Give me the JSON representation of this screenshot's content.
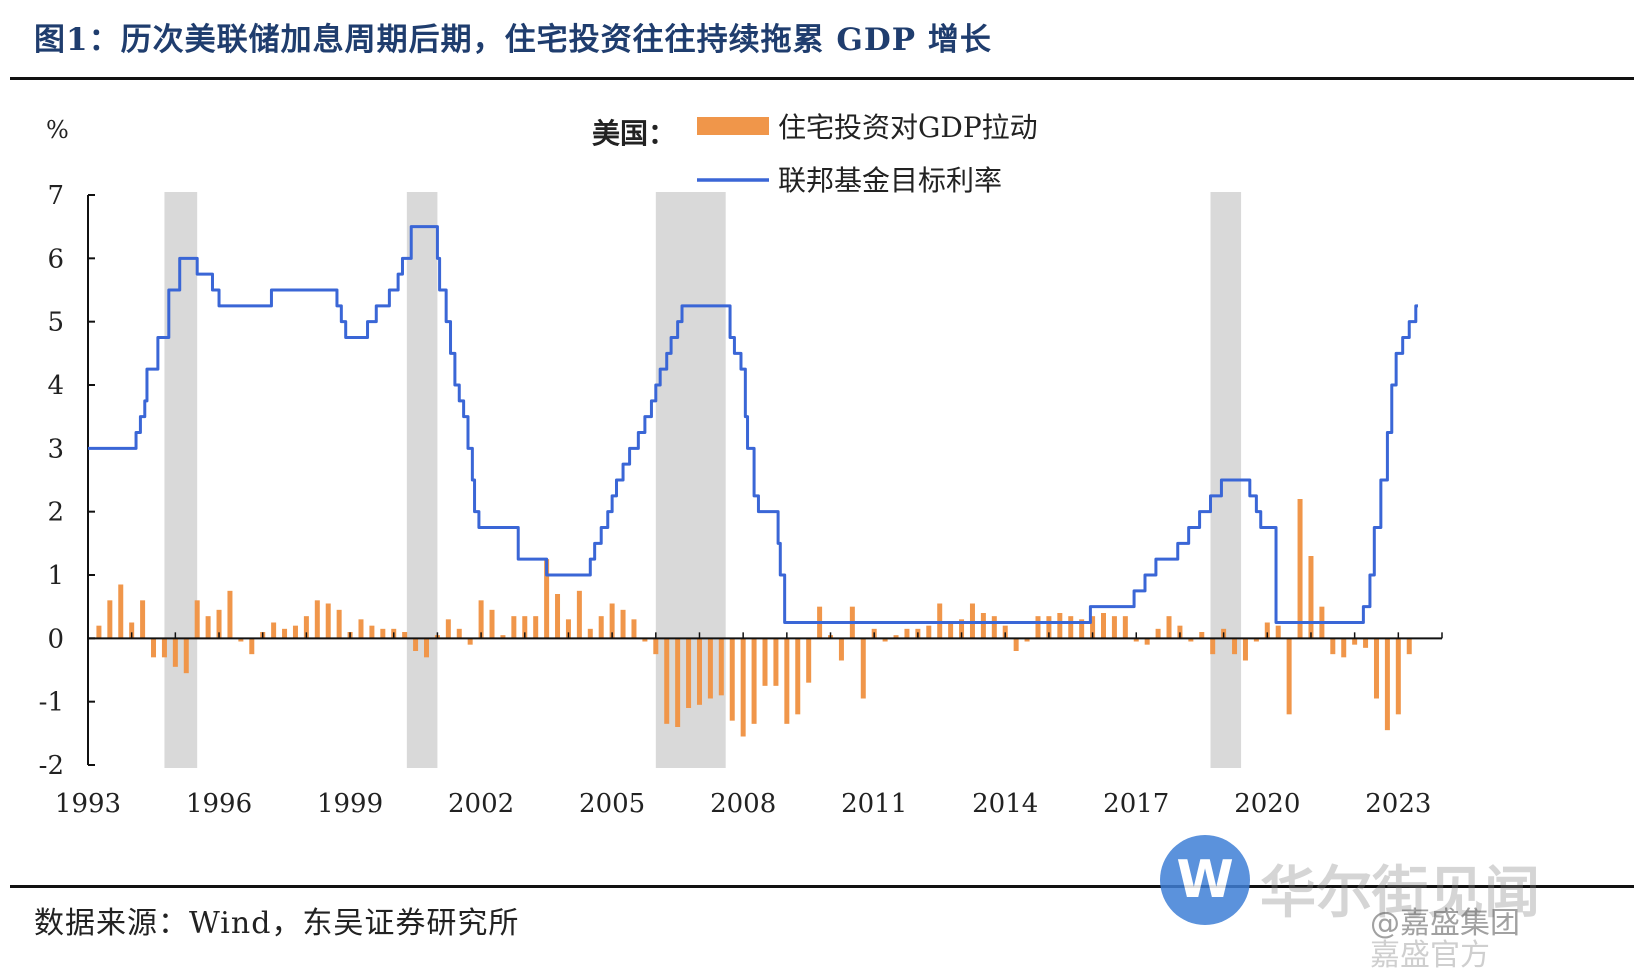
{
  "figure": {
    "title": "图1：历次美联储加息周期后期，住宅投资往往持续拖累 GDP 增长",
    "source": "数据来源：Wind，东吴证券研究所"
  },
  "watermark": {
    "logo_letter": "W",
    "brand": "华尔街见闻",
    "weibo_handle": "@嘉盛集团",
    "weibo_sub": "嘉盛官方"
  },
  "colors": {
    "bars": "#f0964a",
    "line": "#3a66d6",
    "shade": "#d9d9d9",
    "title": "#1f3d6e"
  },
  "chart_data": {
    "type": "bar+line",
    "ylabel": "%",
    "ylim": [
      -2,
      7
    ],
    "yticks": [
      "7",
      "6",
      "5",
      "4",
      "3",
      "2",
      "1",
      "0",
      "-1",
      "-2"
    ],
    "xlim": [
      1993.0,
      2024.0
    ],
    "xticks": [
      "1993",
      "1996",
      "1999",
      "2002",
      "2005",
      "2008",
      "2011",
      "2014",
      "2017",
      "2020",
      "2023"
    ],
    "legend_prefix": "美国：",
    "series": [
      {
        "name": "住宅投资对GDP拉动",
        "type": "bar",
        "points": [
          [
            1993.25,
            0.2
          ],
          [
            1993.5,
            0.6
          ],
          [
            1993.75,
            0.85
          ],
          [
            1994.0,
            0.25
          ],
          [
            1994.25,
            0.6
          ],
          [
            1994.5,
            -0.3
          ],
          [
            1994.75,
            -0.3
          ],
          [
            1995.0,
            -0.45
          ],
          [
            1995.25,
            -0.55
          ],
          [
            1995.5,
            0.6
          ],
          [
            1995.75,
            0.35
          ],
          [
            1996.0,
            0.45
          ],
          [
            1996.25,
            0.75
          ],
          [
            1996.5,
            -0.05
          ],
          [
            1996.75,
            -0.25
          ],
          [
            1997.0,
            0.1
          ],
          [
            1997.25,
            0.25
          ],
          [
            1997.5,
            0.15
          ],
          [
            1997.75,
            0.2
          ],
          [
            1998.0,
            0.35
          ],
          [
            1998.25,
            0.6
          ],
          [
            1998.5,
            0.55
          ],
          [
            1998.75,
            0.45
          ],
          [
            1999.0,
            0.1
          ],
          [
            1999.25,
            0.3
          ],
          [
            1999.5,
            0.2
          ],
          [
            1999.75,
            0.15
          ],
          [
            2000.0,
            0.15
          ],
          [
            2000.25,
            0.1
          ],
          [
            2000.5,
            -0.2
          ],
          [
            2000.75,
            -0.3
          ],
          [
            2001.0,
            0.05
          ],
          [
            2001.25,
            0.3
          ],
          [
            2001.5,
            0.15
          ],
          [
            2001.75,
            -0.1
          ],
          [
            2002.0,
            0.6
          ],
          [
            2002.25,
            0.45
          ],
          [
            2002.5,
            0.05
          ],
          [
            2002.75,
            0.35
          ],
          [
            2003.0,
            0.35
          ],
          [
            2003.25,
            0.35
          ],
          [
            2003.5,
            1.25
          ],
          [
            2003.75,
            0.7
          ],
          [
            2004.0,
            0.3
          ],
          [
            2004.25,
            0.75
          ],
          [
            2004.5,
            0.15
          ],
          [
            2004.75,
            0.35
          ],
          [
            2005.0,
            0.55
          ],
          [
            2005.25,
            0.45
          ],
          [
            2005.5,
            0.3
          ],
          [
            2005.75,
            -0.05
          ],
          [
            2006.0,
            -0.25
          ],
          [
            2006.25,
            -1.35
          ],
          [
            2006.5,
            -1.4
          ],
          [
            2006.75,
            -1.1
          ],
          [
            2007.0,
            -1.05
          ],
          [
            2007.25,
            -0.95
          ],
          [
            2007.5,
            -0.9
          ],
          [
            2007.75,
            -1.3
          ],
          [
            2008.0,
            -1.55
          ],
          [
            2008.25,
            -1.35
          ],
          [
            2008.5,
            -0.75
          ],
          [
            2008.75,
            -0.75
          ],
          [
            2009.0,
            -1.35
          ],
          [
            2009.25,
            -1.2
          ],
          [
            2009.5,
            -0.7
          ],
          [
            2009.75,
            0.5
          ],
          [
            2010.0,
            0.05
          ],
          [
            2010.25,
            -0.35
          ],
          [
            2010.5,
            0.5
          ],
          [
            2010.75,
            -0.95
          ],
          [
            2011.0,
            0.15
          ],
          [
            2011.25,
            -0.05
          ],
          [
            2011.5,
            0.05
          ],
          [
            2011.75,
            0.15
          ],
          [
            2012.0,
            0.15
          ],
          [
            2012.25,
            0.2
          ],
          [
            2012.5,
            0.55
          ],
          [
            2012.75,
            0.25
          ],
          [
            2013.0,
            0.3
          ],
          [
            2013.25,
            0.55
          ],
          [
            2013.5,
            0.4
          ],
          [
            2013.75,
            0.35
          ],
          [
            2014.0,
            0.2
          ],
          [
            2014.25,
            -0.2
          ],
          [
            2014.5,
            -0.05
          ],
          [
            2014.75,
            0.35
          ],
          [
            2015.0,
            0.35
          ],
          [
            2015.25,
            0.4
          ],
          [
            2015.5,
            0.35
          ],
          [
            2015.75,
            0.3
          ],
          [
            2016.0,
            0.35
          ],
          [
            2016.25,
            0.4
          ],
          [
            2016.5,
            0.35
          ],
          [
            2016.75,
            0.35
          ],
          [
            2017.0,
            -0.05
          ],
          [
            2017.25,
            -0.1
          ],
          [
            2017.5,
            0.15
          ],
          [
            2017.75,
            0.35
          ],
          [
            2018.0,
            0.2
          ],
          [
            2018.25,
            -0.05
          ],
          [
            2018.5,
            0.1
          ],
          [
            2018.75,
            -0.25
          ],
          [
            2019.0,
            0.15
          ],
          [
            2019.25,
            -0.25
          ],
          [
            2019.5,
            -0.35
          ],
          [
            2019.75,
            -0.05
          ],
          [
            2020.0,
            0.25
          ],
          [
            2020.25,
            0.2
          ],
          [
            2020.5,
            -1.2
          ],
          [
            2020.75,
            2.2
          ],
          [
            2021.0,
            1.3
          ],
          [
            2021.25,
            0.5
          ],
          [
            2021.5,
            -0.25
          ],
          [
            2021.75,
            -0.3
          ],
          [
            2022.0,
            -0.1
          ],
          [
            2022.25,
            -0.15
          ],
          [
            2022.5,
            -0.95
          ],
          [
            2022.75,
            -1.45
          ],
          [
            2023.0,
            -1.2
          ],
          [
            2023.25,
            -0.25
          ]
        ]
      },
      {
        "name": "联邦基金目标利率",
        "type": "step-line",
        "points": [
          [
            1993.0,
            3.0
          ],
          [
            1994.0,
            3.0
          ],
          [
            1994.1,
            3.25
          ],
          [
            1994.2,
            3.5
          ],
          [
            1994.3,
            3.75
          ],
          [
            1994.35,
            4.25
          ],
          [
            1994.6,
            4.75
          ],
          [
            1994.85,
            5.5
          ],
          [
            1995.1,
            6.0
          ],
          [
            1995.5,
            5.75
          ],
          [
            1995.85,
            5.5
          ],
          [
            1996.0,
            5.25
          ],
          [
            1997.2,
            5.5
          ],
          [
            1998.7,
            5.25
          ],
          [
            1998.8,
            5.0
          ],
          [
            1998.9,
            4.75
          ],
          [
            1999.4,
            5.0
          ],
          [
            1999.6,
            5.25
          ],
          [
            1999.9,
            5.5
          ],
          [
            2000.1,
            5.75
          ],
          [
            2000.2,
            6.0
          ],
          [
            2000.4,
            6.5
          ],
          [
            2001.0,
            6.0
          ],
          [
            2001.05,
            5.5
          ],
          [
            2001.2,
            5.0
          ],
          [
            2001.3,
            4.5
          ],
          [
            2001.4,
            4.0
          ],
          [
            2001.5,
            3.75
          ],
          [
            2001.6,
            3.5
          ],
          [
            2001.7,
            3.0
          ],
          [
            2001.8,
            2.5
          ],
          [
            2001.85,
            2.0
          ],
          [
            2001.95,
            1.75
          ],
          [
            2002.85,
            1.25
          ],
          [
            2003.5,
            1.0
          ],
          [
            2004.5,
            1.25
          ],
          [
            2004.6,
            1.5
          ],
          [
            2004.75,
            1.75
          ],
          [
            2004.9,
            2.0
          ],
          [
            2005.0,
            2.25
          ],
          [
            2005.1,
            2.5
          ],
          [
            2005.25,
            2.75
          ],
          [
            2005.4,
            3.0
          ],
          [
            2005.6,
            3.25
          ],
          [
            2005.75,
            3.5
          ],
          [
            2005.9,
            3.75
          ],
          [
            2006.0,
            4.0
          ],
          [
            2006.1,
            4.25
          ],
          [
            2006.25,
            4.5
          ],
          [
            2006.35,
            4.75
          ],
          [
            2006.5,
            5.0
          ],
          [
            2006.6,
            5.25
          ],
          [
            2007.7,
            4.75
          ],
          [
            2007.8,
            4.5
          ],
          [
            2007.95,
            4.25
          ],
          [
            2008.05,
            3.5
          ],
          [
            2008.1,
            3.0
          ],
          [
            2008.25,
            2.25
          ],
          [
            2008.35,
            2.0
          ],
          [
            2008.8,
            1.5
          ],
          [
            2008.85,
            1.0
          ],
          [
            2008.95,
            0.25
          ],
          [
            2015.95,
            0.5
          ],
          [
            2016.95,
            0.75
          ],
          [
            2017.2,
            1.0
          ],
          [
            2017.45,
            1.25
          ],
          [
            2017.95,
            1.5
          ],
          [
            2018.2,
            1.75
          ],
          [
            2018.45,
            2.0
          ],
          [
            2018.7,
            2.25
          ],
          [
            2018.95,
            2.5
          ],
          [
            2019.6,
            2.25
          ],
          [
            2019.75,
            2.0
          ],
          [
            2019.85,
            1.75
          ],
          [
            2020.2,
            0.25
          ],
          [
            2022.2,
            0.5
          ],
          [
            2022.35,
            1.0
          ],
          [
            2022.45,
            1.75
          ],
          [
            2022.6,
            2.5
          ],
          [
            2022.75,
            3.25
          ],
          [
            2022.85,
            4.0
          ],
          [
            2022.95,
            4.5
          ],
          [
            2023.1,
            4.75
          ],
          [
            2023.25,
            5.0
          ],
          [
            2023.4,
            5.25
          ]
        ]
      }
    ],
    "shaded_periods": [
      [
        1994.75,
        1995.5
      ],
      [
        2000.3,
        2001.0
      ],
      [
        2006.0,
        2007.6
      ],
      [
        2018.7,
        2019.4
      ]
    ],
    "grid": false,
    "legend_position": "top-center"
  }
}
